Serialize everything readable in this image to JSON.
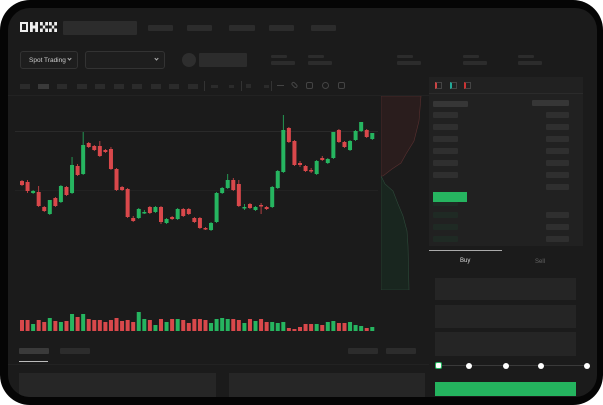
{
  "header": {
    "logo": "OKX"
  },
  "market": {
    "mode_label": "Spot Trading"
  },
  "trade": {
    "tabs": [
      "Buy",
      "Sell"
    ],
    "active_tab": "Buy",
    "slider_percent": 0,
    "slider_marks": [
      0,
      25,
      50,
      75,
      100
    ]
  },
  "colors": {
    "up": "#26b560",
    "down": "#d9484b",
    "background": "#1b1b1b",
    "accent": "#24b35e"
  },
  "toolbar_icons": [
    "indicator-icon",
    "draw-icon",
    "line-icon",
    "ruler-icon",
    "camera-icon",
    "settings-icon",
    "fullscreen-icon"
  ],
  "orderbook_icons": [
    "orderbook-both-icon",
    "orderbook-bids-icon",
    "orderbook-asks-icon"
  ],
  "chart_data": {
    "type": "candlestick",
    "ohlc": [
      [
        119,
        120,
        114,
        115
      ],
      [
        118,
        120,
        107,
        109
      ],
      [
        107,
        110,
        106,
        109
      ],
      [
        108,
        114,
        93,
        94
      ],
      [
        93,
        94,
        88,
        89
      ],
      [
        86,
        100,
        85,
        100
      ],
      [
        102,
        103,
        93,
        94
      ],
      [
        98,
        115,
        97,
        114
      ],
      [
        113,
        114,
        104,
        105
      ],
      [
        107,
        143,
        106,
        135
      ],
      [
        134,
        136,
        124,
        125
      ],
      [
        126,
        168,
        125,
        155
      ],
      [
        157,
        158,
        152,
        153
      ],
      [
        154,
        155,
        149,
        150
      ],
      [
        154,
        159,
        143,
        144
      ],
      [
        150,
        151,
        147,
        148
      ],
      [
        151,
        153,
        130,
        131
      ],
      [
        131,
        132,
        109,
        110
      ],
      [
        113,
        114,
        109,
        110
      ],
      [
        111,
        112,
        82,
        83
      ],
      [
        82,
        84,
        78,
        79
      ],
      [
        82,
        92,
        81,
        91
      ],
      [
        88,
        90,
        86,
        88
      ],
      [
        93,
        94,
        86,
        87
      ],
      [
        88,
        94,
        87,
        93
      ],
      [
        93,
        94,
        76,
        78
      ],
      [
        77,
        82,
        76,
        81
      ],
      [
        83,
        84,
        80,
        81
      ],
      [
        81,
        92,
        80,
        91
      ],
      [
        91,
        92,
        83,
        84
      ],
      [
        91,
        92,
        85,
        86
      ],
      [
        82,
        83,
        77,
        78
      ],
      [
        82,
        83,
        71,
        72
      ],
      [
        72,
        73,
        70,
        71
      ],
      [
        70,
        78,
        69,
        77
      ],
      [
        78,
        108,
        77,
        107
      ],
      [
        107,
        113,
        106,
        112
      ],
      [
        112,
        126,
        111,
        120
      ],
      [
        120,
        122,
        109,
        110
      ],
      [
        116,
        120,
        93,
        94
      ],
      [
        93,
        96,
        90,
        93
      ],
      [
        96,
        97,
        91,
        92
      ],
      [
        90,
        94,
        89,
        93
      ],
      [
        95,
        97,
        86,
        94
      ],
      [
        93,
        94,
        90,
        91
      ],
      [
        93,
        114,
        92,
        113
      ],
      [
        112,
        130,
        111,
        129
      ],
      [
        128,
        185,
        127,
        170
      ],
      [
        172,
        173,
        157,
        158
      ],
      [
        159,
        160,
        134,
        135
      ],
      [
        137,
        139,
        133,
        135
      ],
      [
        134,
        135,
        128,
        129
      ],
      [
        130,
        132,
        127,
        129
      ],
      [
        126,
        140,
        125,
        139
      ],
      [
        142,
        144,
        139,
        140
      ],
      [
        137,
        142,
        136,
        141
      ],
      [
        142,
        168,
        141,
        168
      ],
      [
        170,
        171,
        157,
        158
      ],
      [
        158,
        159,
        152,
        153
      ],
      [
        150,
        160,
        149,
        159
      ],
      [
        160,
        170,
        159,
        169
      ],
      [
        169,
        178,
        168,
        178
      ],
      [
        170,
        171,
        162,
        163
      ],
      [
        161,
        167,
        160,
        167
      ]
    ],
    "volume": [
      11,
      11,
      7,
      11,
      9,
      13,
      10,
      9,
      10,
      17,
      14,
      17,
      12,
      11,
      11,
      9,
      11,
      13,
      10,
      11,
      9,
      19,
      12,
      11,
      6,
      12,
      9,
      12,
      12,
      11,
      8,
      12,
      12,
      11,
      8,
      12,
      13,
      12,
      12,
      11,
      8,
      12,
      10,
      12,
      9,
      9,
      8,
      9,
      3,
      2,
      4,
      7,
      7,
      7,
      6,
      9,
      10,
      8,
      8,
      9,
      6,
      5,
      3,
      4
    ]
  }
}
